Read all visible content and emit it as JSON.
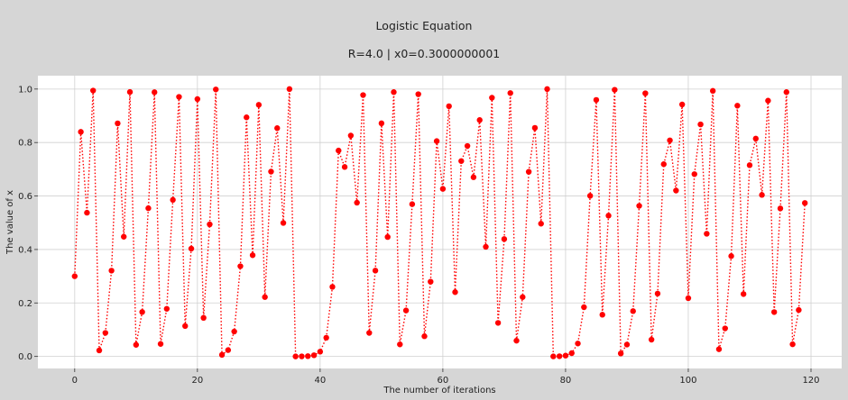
{
  "chart_data": {
    "type": "line",
    "title": "Logistic Equation",
    "subtitle": "R=4.0  |  x0=0.3000000001",
    "xlabel": "The number of iterations",
    "ylabel": "The value of x",
    "xlim": [
      -6,
      125
    ],
    "ylim": [
      -0.045,
      1.05
    ],
    "xticks": [
      0,
      20,
      40,
      60,
      80,
      100,
      120
    ],
    "yticks": [
      0.0,
      0.2,
      0.4,
      0.6,
      0.8,
      1.0
    ],
    "xtick_labels": [
      "0",
      "20",
      "40",
      "60",
      "80",
      "100",
      "120"
    ],
    "ytick_labels": [
      "0.0",
      "0.2",
      "0.4",
      "0.6",
      "0.8",
      "1.0"
    ],
    "grid": true,
    "line_style": "dotted",
    "marker": "circle",
    "color": "#ff0000",
    "x_start": 0,
    "x_step": 1,
    "values": [
      0.3,
      0.84,
      0.5376,
      0.99434,
      0.02249,
      0.08794,
      0.32084,
      0.87161,
      0.44762,
      0.98902,
      0.04345,
      0.16624,
      0.55443,
      0.98818,
      0.04672,
      0.17814,
      0.58561,
      0.97071,
      0.11373,
      0.40318,
      0.96253,
      0.14428,
      0.49388,
      0.9985,
      0.00599,
      0.02381,
      0.09298,
      0.33733,
      0.89417,
      0.37853,
      0.94098,
      0.22214,
      0.69118,
      0.85381,
      0.49927,
      0.99998,
      7e-05,
      0.00028,
      0.00112,
      0.00447,
      0.0178,
      0.06993,
      0.26016,
      0.76992,
      0.70858,
      0.82595,
      0.57503,
      0.97749,
      0.08801,
      0.32106,
      0.87194,
      0.44668,
      0.98862,
      0.045,
      0.17191,
      0.56945,
      0.98073,
      0.07558,
      0.27948,
      0.80547,
      0.62673,
      0.93574,
      0.24052,
      0.73069,
      0.78713,
      0.67024,
      0.88406,
      0.40999,
      0.96758,
      0.12548,
      0.43893,
      0.98504,
      0.05894,
      0.22186,
      0.69055,
      0.85476,
      0.49656,
      0.99995,
      0.00019,
      0.00077,
      0.00307,
      0.01224,
      0.04836,
      0.18409,
      0.6008,
      0.95936,
      0.15595,
      0.52651,
      0.99719,
      0.01121,
      0.04434,
      0.1695,
      0.56309,
      0.98408,
      0.06267,
      0.23497,
      0.71903,
      0.80811,
      0.62026,
      0.94217,
      0.21794,
      0.68177,
      0.86781,
      0.45885,
      0.99322,
      0.02693,
      0.10482,
      0.37534,
      0.93783,
      0.23322,
      0.7153,
      0.81459,
      0.60412,
      0.95664,
      0.16592,
      0.55357,
      0.9885,
      0.04547,
      0.1736,
      0.57385
    ]
  }
}
